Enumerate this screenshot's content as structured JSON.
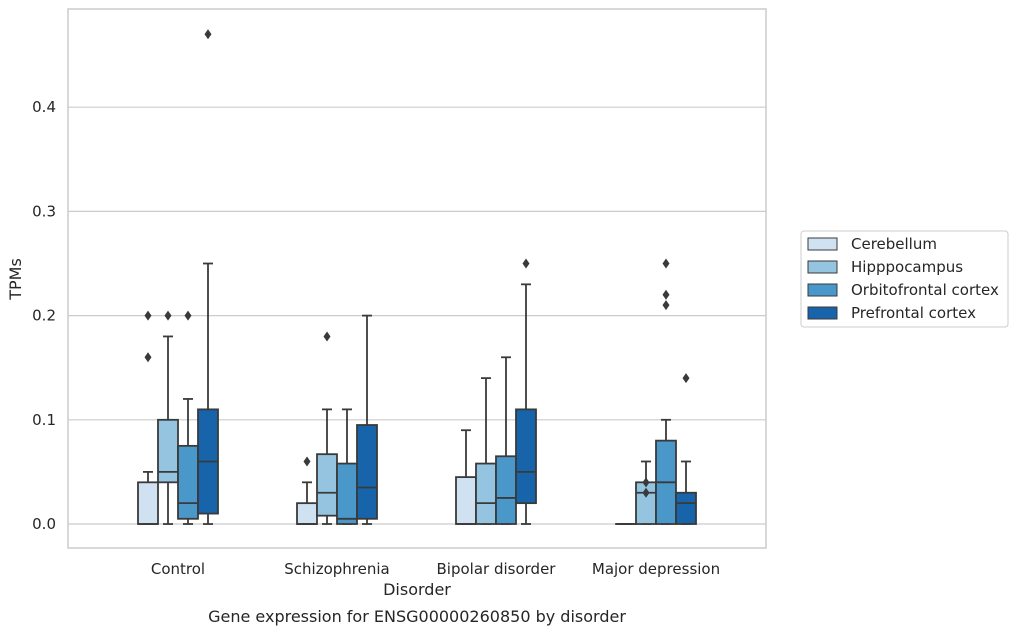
{
  "chart_data": {
    "type": "box",
    "caption": "Gene expression for ENSG00000260850 by disorder",
    "xlabel": "Disorder",
    "ylabel": "TPMs",
    "ylim": [
      -0.023,
      0.494
    ],
    "yticks": [
      0.0,
      0.1,
      0.2,
      0.3,
      0.4
    ],
    "ytick_labels": [
      "0.0",
      "0.1",
      "0.2",
      "0.3",
      "0.4"
    ],
    "grid": "horizontal",
    "legend_position": "right",
    "categories": [
      "Control",
      "Schizophrenia",
      "Bipolar disorder",
      "Major depression"
    ],
    "series": [
      {
        "name": "Cerebellum",
        "color": "#d0e1f2",
        "boxes": [
          {
            "whislo": 0.0,
            "q1": 0.0,
            "med": 0.0,
            "q3": 0.04,
            "whishi": 0.05,
            "fliers": [
              0.16,
              0.2
            ]
          },
          {
            "whislo": 0.0,
            "q1": 0.0,
            "med": 0.0,
            "q3": 0.02,
            "whishi": 0.04,
            "fliers": [
              0.06
            ]
          },
          {
            "whislo": 0.0,
            "q1": 0.0,
            "med": 0.0,
            "q3": 0.045,
            "whishi": 0.09,
            "fliers": []
          },
          {
            "whislo": 0.0,
            "q1": 0.0,
            "med": 0.0,
            "q3": 0.0,
            "whishi": 0.0,
            "fliers": []
          }
        ]
      },
      {
        "name": "Hipppocampus",
        "color": "#94c4df",
        "boxes": [
          {
            "whislo": 0.0,
            "q1": 0.04,
            "med": 0.05,
            "q3": 0.1,
            "whishi": 0.18,
            "fliers": [
              0.2
            ]
          },
          {
            "whislo": 0.0,
            "q1": 0.008,
            "med": 0.03,
            "q3": 0.067,
            "whishi": 0.11,
            "fliers": [
              0.18
            ]
          },
          {
            "whislo": 0.0,
            "q1": 0.0,
            "med": 0.02,
            "q3": 0.058,
            "whishi": 0.14,
            "fliers": []
          },
          {
            "whislo": 0.0,
            "q1": 0.0,
            "med": 0.03,
            "q3": 0.04,
            "whishi": 0.06,
            "fliers": [
              0.03,
              0.04
            ]
          }
        ]
      },
      {
        "name": "Orbitofrontal cortex",
        "color": "#4a98c9",
        "boxes": [
          {
            "whislo": 0.0,
            "q1": 0.005,
            "med": 0.02,
            "q3": 0.075,
            "whishi": 0.12,
            "fliers": [
              0.2
            ]
          },
          {
            "whislo": 0.0,
            "q1": 0.0,
            "med": 0.005,
            "q3": 0.058,
            "whishi": 0.11,
            "fliers": []
          },
          {
            "whislo": 0.0,
            "q1": 0.0,
            "med": 0.025,
            "q3": 0.065,
            "whishi": 0.16,
            "fliers": []
          },
          {
            "whislo": 0.0,
            "q1": 0.0,
            "med": 0.04,
            "q3": 0.08,
            "whishi": 0.1,
            "fliers": [
              0.21,
              0.22,
              0.25
            ]
          }
        ]
      },
      {
        "name": "Prefrontal cortex",
        "color": "#1764ab",
        "boxes": [
          {
            "whislo": 0.0,
            "q1": 0.01,
            "med": 0.06,
            "q3": 0.11,
            "whishi": 0.25,
            "fliers": [
              0.47
            ]
          },
          {
            "whislo": 0.0,
            "q1": 0.005,
            "med": 0.035,
            "q3": 0.095,
            "whishi": 0.2,
            "fliers": []
          },
          {
            "whislo": 0.0,
            "q1": 0.02,
            "med": 0.05,
            "q3": 0.11,
            "whishi": 0.23,
            "fliers": [
              0.25
            ]
          },
          {
            "whislo": 0.0,
            "q1": 0.0,
            "med": 0.02,
            "q3": 0.03,
            "whishi": 0.06,
            "fliers": [
              0.14
            ]
          }
        ]
      }
    ]
  }
}
